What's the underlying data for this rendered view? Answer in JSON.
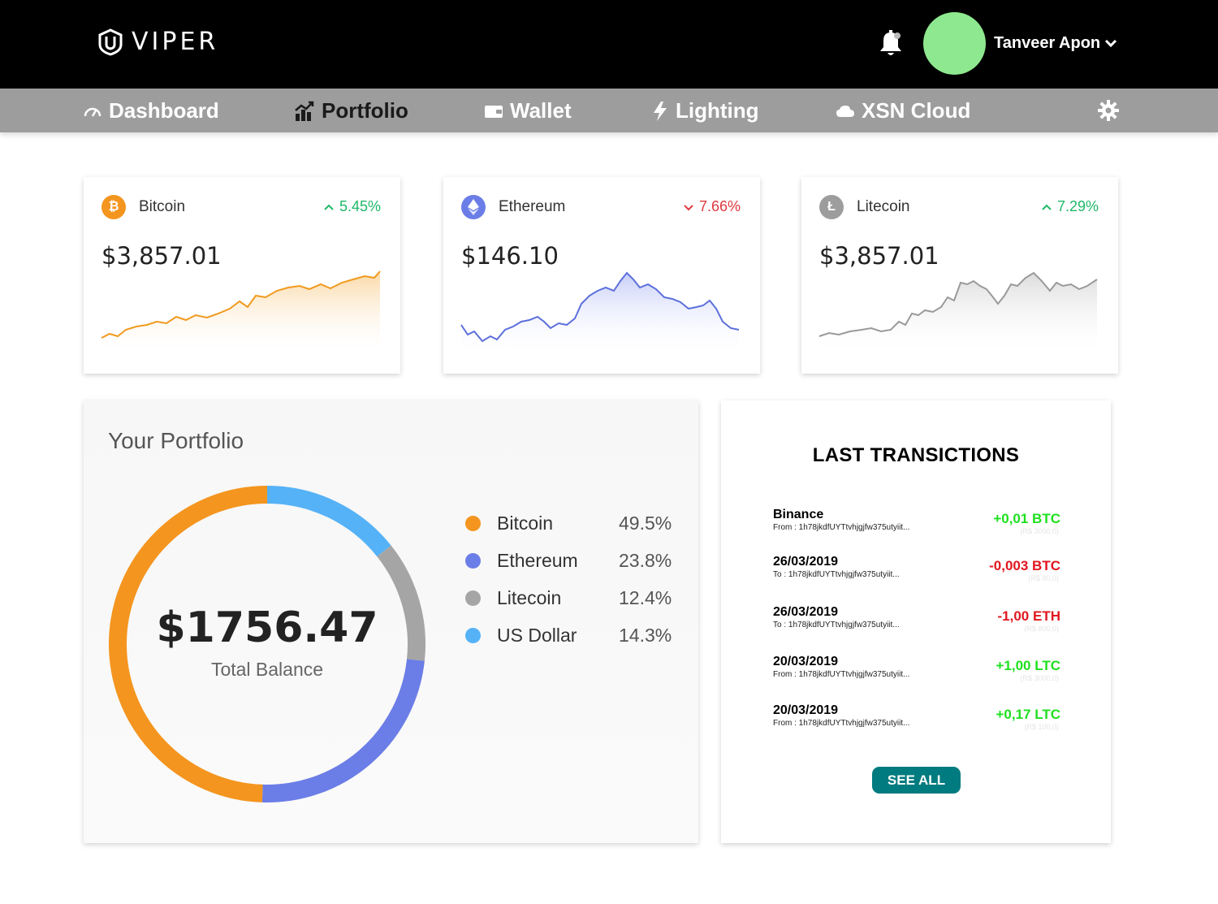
{
  "header": {
    "logo_text": "VIPER",
    "user_name": "Tanveer Apon",
    "avatar_color": "#8ee88f"
  },
  "nav": {
    "items": [
      {
        "label": "Dashboard",
        "icon": "gauge-icon"
      },
      {
        "label": "Portfolio",
        "icon": "chart-icon"
      },
      {
        "label": "Wallet",
        "icon": "wallet-icon"
      },
      {
        "label": "Lighting",
        "icon": "lightning-icon"
      },
      {
        "label": "XSN Cloud",
        "icon": "cloud-icon"
      }
    ],
    "active": "Portfolio"
  },
  "coins": [
    {
      "name": "Bitcoin",
      "symbol_icon": "bitcoin-icon",
      "change": "5.45%",
      "direction": "up",
      "price": "$3,857.01",
      "color": "#f4951f"
    },
    {
      "name": "Ethereum",
      "symbol_icon": "ethereum-icon",
      "change": "7.66%",
      "direction": "down",
      "price": "$146.10",
      "color": "#6b7de6"
    },
    {
      "name": "Litecoin",
      "symbol_icon": "litecoin-icon",
      "change": "7.29%",
      "direction": "up",
      "price": "$3,857.01",
      "color": "#9d9d9d"
    }
  ],
  "portfolio": {
    "title": "Your Portfolio",
    "total": "$1756.47",
    "total_label": "Total Balance",
    "allocation": [
      {
        "name": "Bitcoin",
        "percent": "49.5%",
        "value": 49.5,
        "color": "#f4951f"
      },
      {
        "name": "Ethereum",
        "percent": "23.8%",
        "value": 23.8,
        "color": "#6b7de6"
      },
      {
        "name": "Litecoin",
        "percent": "12.4%",
        "value": 12.4,
        "color": "#a5a5a5"
      },
      {
        "name": "US Dollar",
        "percent": "14.3%",
        "value": 14.3,
        "color": "#55b2f7"
      }
    ]
  },
  "transactions": {
    "title": "LAST TRANSICTIONS",
    "see_all": "SEE ALL",
    "items": [
      {
        "title": "Binance",
        "detail": "From :  1h78jkdfUYTtvhjgjfw375utyiit...",
        "amount": "+0,01 BTC",
        "fiat": "(R$ 3000,0)",
        "sign": "pos"
      },
      {
        "title": "26/03/2019",
        "detail": "To :  1h78jkdfUYTtvhjgjfw375utyiit...",
        "amount": "-0,003 BTC",
        "fiat": "(R$ 80,0)",
        "sign": "neg"
      },
      {
        "title": "26/03/2019",
        "detail": "To :  1h78jkdfUYTtvhjgjfw375utyiit...",
        "amount": "-1,00 ETH",
        "fiat": "(R$ 800,0)",
        "sign": "neg"
      },
      {
        "title": "20/03/2019",
        "detail": "From :  1h78jkdfUYTtvhjgjfw375utyiit...",
        "amount": "+1,00 LTC",
        "fiat": "(R$ 3000,0)",
        "sign": "pos"
      },
      {
        "title": "20/03/2019",
        "detail": "From :  1h78jkdfUYTtvhjgjfw375utyiit...",
        "amount": "+0,17 LTC",
        "fiat": "(R$ 100,0)",
        "sign": "pos"
      }
    ]
  }
}
